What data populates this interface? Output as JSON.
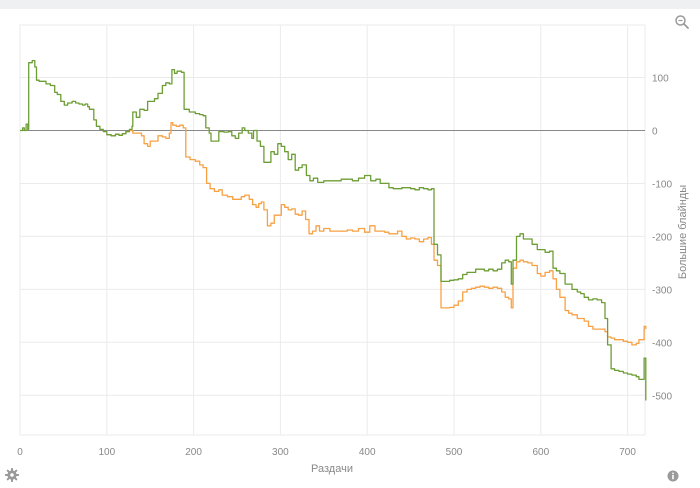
{
  "chart_data": {
    "type": "line",
    "title": "",
    "xlabel": "Раздачи",
    "ylabel": "Большие блайнды",
    "xlim": [
      0,
      722
    ],
    "ylim": [
      -530,
      135
    ],
    "xticks": [
      0,
      100,
      200,
      300,
      400,
      500,
      600,
      700
    ],
    "yticks": [
      100,
      0,
      -100,
      -200,
      -300,
      -400,
      -500
    ],
    "grid": true,
    "colors": {
      "green": "#6d9e35",
      "orange": "#f7a144",
      "zero_line": "#888888",
      "grid": "#ebebeb"
    },
    "series": [
      {
        "color": "#6d9e35",
        "points": [
          [
            0,
            0
          ],
          [
            3,
            5
          ],
          [
            5,
            0
          ],
          [
            7,
            12
          ],
          [
            9,
            2
          ],
          [
            10,
            128
          ],
          [
            14,
            132
          ],
          [
            17,
            120
          ],
          [
            19,
            95
          ],
          [
            22,
            93
          ],
          [
            27,
            93
          ],
          [
            30,
            88
          ],
          [
            35,
            85
          ],
          [
            40,
            72
          ],
          [
            43,
            68
          ],
          [
            47,
            55
          ],
          [
            51,
            48
          ],
          [
            55,
            52
          ],
          [
            60,
            55
          ],
          [
            64,
            52
          ],
          [
            68,
            50
          ],
          [
            72,
            48
          ],
          [
            75,
            50
          ],
          [
            78,
            45
          ],
          [
            80,
            40
          ],
          [
            85,
            20
          ],
          [
            88,
            8
          ],
          [
            92,
            2
          ],
          [
            96,
            -2
          ],
          [
            100,
            -8
          ],
          [
            105,
            -10
          ],
          [
            110,
            -7
          ],
          [
            114,
            -9
          ],
          [
            118,
            -6
          ],
          [
            122,
            -2
          ],
          [
            126,
            2
          ],
          [
            129,
            8
          ],
          [
            130,
            35
          ],
          [
            134,
            25
          ],
          [
            138,
            40
          ],
          [
            143,
            38
          ],
          [
            147,
            55
          ],
          [
            152,
            55
          ],
          [
            155,
            60
          ],
          [
            159,
            70
          ],
          [
            164,
            85
          ],
          [
            168,
            90
          ],
          [
            172,
            88
          ],
          [
            175,
            115
          ],
          [
            178,
            108
          ],
          [
            181,
            112
          ],
          [
            186,
            110
          ],
          [
            189,
            40
          ],
          [
            195,
            35
          ],
          [
            202,
            32
          ],
          [
            207,
            30
          ],
          [
            211,
            28
          ],
          [
            214,
            5
          ],
          [
            218,
            -5
          ],
          [
            220,
            -20
          ],
          [
            225,
            -20
          ],
          [
            229,
            -2
          ],
          [
            235,
            -3
          ],
          [
            240,
            -2
          ],
          [
            244,
            -10
          ],
          [
            248,
            -15
          ],
          [
            252,
            -5
          ],
          [
            256,
            5
          ],
          [
            259,
            0
          ],
          [
            263,
            -5
          ],
          [
            267,
            -15
          ],
          [
            269,
            0
          ],
          [
            273,
            -20
          ],
          [
            277,
            -30
          ],
          [
            281,
            -60
          ],
          [
            285,
            -60
          ],
          [
            289,
            -40
          ],
          [
            293,
            -45
          ],
          [
            297,
            -25
          ],
          [
            301,
            -30
          ],
          [
            305,
            -40
          ],
          [
            309,
            -55
          ],
          [
            313,
            -45
          ],
          [
            317,
            -75
          ],
          [
            321,
            -70
          ],
          [
            325,
            -65
          ],
          [
            330,
            -85
          ],
          [
            334,
            -95
          ],
          [
            338,
            -90
          ],
          [
            343,
            -98
          ],
          [
            350,
            -95
          ],
          [
            357,
            -95
          ],
          [
            363,
            -95
          ],
          [
            370,
            -92
          ],
          [
            377,
            -92
          ],
          [
            383,
            -95
          ],
          [
            390,
            -90
          ],
          [
            397,
            -85
          ],
          [
            404,
            -95
          ],
          [
            410,
            -92
          ],
          [
            415,
            -100
          ],
          [
            420,
            -100
          ],
          [
            425,
            -108
          ],
          [
            430,
            -110
          ],
          [
            435,
            -110
          ],
          [
            440,
            -108
          ],
          [
            445,
            -108
          ],
          [
            450,
            -110
          ],
          [
            455,
            -112
          ],
          [
            460,
            -108
          ],
          [
            465,
            -110
          ],
          [
            470,
            -112
          ],
          [
            474,
            -110
          ],
          [
            477,
            -215
          ],
          [
            481,
            -235
          ],
          [
            485,
            -285
          ],
          [
            490,
            -285
          ],
          [
            495,
            -283
          ],
          [
            500,
            -282
          ],
          [
            505,
            -280
          ],
          [
            510,
            -272
          ],
          [
            515,
            -268
          ],
          [
            520,
            -268
          ],
          [
            525,
            -262
          ],
          [
            530,
            -262
          ],
          [
            535,
            -265
          ],
          [
            540,
            -262
          ],
          [
            545,
            -265
          ],
          [
            550,
            -262
          ],
          [
            555,
            -250
          ],
          [
            559,
            -245
          ],
          [
            563,
            -248
          ],
          [
            566,
            -290
          ],
          [
            568,
            -245
          ],
          [
            572,
            -200
          ],
          [
            576,
            -195
          ],
          [
            580,
            -205
          ],
          [
            585,
            -205
          ],
          [
            590,
            -215
          ],
          [
            596,
            -225
          ],
          [
            600,
            -225
          ],
          [
            605,
            -230
          ],
          [
            610,
            -228
          ],
          [
            614,
            -260
          ],
          [
            618,
            -265
          ],
          [
            622,
            -270
          ],
          [
            628,
            -290
          ],
          [
            632,
            -290
          ],
          [
            636,
            -300
          ],
          [
            642,
            -305
          ],
          [
            646,
            -308
          ],
          [
            650,
            -315
          ],
          [
            655,
            -320
          ],
          [
            660,
            -318
          ],
          [
            665,
            -320
          ],
          [
            670,
            -325
          ],
          [
            674,
            -355
          ],
          [
            677,
            -405
          ],
          [
            681,
            -450
          ],
          [
            685,
            -453
          ],
          [
            690,
            -455
          ],
          [
            695,
            -458
          ],
          [
            700,
            -460
          ],
          [
            705,
            -462
          ],
          [
            710,
            -465
          ],
          [
            713,
            -470
          ],
          [
            716,
            -470
          ],
          [
            719,
            -430
          ],
          [
            721,
            -510
          ]
        ]
      },
      {
        "color": "#f7a144",
        "points": [
          [
            100,
            -8
          ],
          [
            105,
            -10
          ],
          [
            110,
            -7
          ],
          [
            114,
            -9
          ],
          [
            118,
            -6
          ],
          [
            122,
            -2
          ],
          [
            126,
            0
          ],
          [
            130,
            -5
          ],
          [
            135,
            -5
          ],
          [
            140,
            -10
          ],
          [
            143,
            -25
          ],
          [
            147,
            -30
          ],
          [
            150,
            -20
          ],
          [
            154,
            -20
          ],
          [
            159,
            -10
          ],
          [
            164,
            -12
          ],
          [
            168,
            -15
          ],
          [
            172,
            -5
          ],
          [
            174,
            15
          ],
          [
            176,
            10
          ],
          [
            180,
            8
          ],
          [
            184,
            10
          ],
          [
            188,
            5
          ],
          [
            191,
            -50
          ],
          [
            196,
            -55
          ],
          [
            202,
            -58
          ],
          [
            207,
            -65
          ],
          [
            211,
            -70
          ],
          [
            215,
            -100
          ],
          [
            219,
            -110
          ],
          [
            224,
            -115
          ],
          [
            229,
            -112
          ],
          [
            233,
            -122
          ],
          [
            239,
            -125
          ],
          [
            245,
            -130
          ],
          [
            251,
            -130
          ],
          [
            255,
            -125
          ],
          [
            259,
            -122
          ],
          [
            264,
            -130
          ],
          [
            268,
            -140
          ],
          [
            272,
            -145
          ],
          [
            275,
            -138
          ],
          [
            278,
            -135
          ],
          [
            281,
            -150
          ],
          [
            285,
            -180
          ],
          [
            289,
            -175
          ],
          [
            293,
            -160
          ],
          [
            297,
            -160
          ],
          [
            301,
            -140
          ],
          [
            305,
            -145
          ],
          [
            309,
            -150
          ],
          [
            313,
            -148
          ],
          [
            317,
            -158
          ],
          [
            321,
            -160
          ],
          [
            325,
            -152
          ],
          [
            329,
            -168
          ],
          [
            333,
            -195
          ],
          [
            337,
            -190
          ],
          [
            341,
            -180
          ],
          [
            345,
            -190
          ],
          [
            350,
            -185
          ],
          [
            357,
            -190
          ],
          [
            363,
            -190
          ],
          [
            370,
            -190
          ],
          [
            377,
            -188
          ],
          [
            383,
            -190
          ],
          [
            390,
            -185
          ],
          [
            397,
            -192
          ],
          [
            403,
            -180
          ],
          [
            409,
            -190
          ],
          [
            415,
            -190
          ],
          [
            420,
            -192
          ],
          [
            425,
            -195
          ],
          [
            430,
            -195
          ],
          [
            435,
            -190
          ],
          [
            440,
            -200
          ],
          [
            445,
            -205
          ],
          [
            450,
            -203
          ],
          [
            455,
            -205
          ],
          [
            460,
            -210
          ],
          [
            465,
            -205
          ],
          [
            470,
            -202
          ],
          [
            474,
            -215
          ],
          [
            477,
            -245
          ],
          [
            481,
            -255
          ],
          [
            485,
            -335
          ],
          [
            490,
            -335
          ],
          [
            495,
            -334
          ],
          [
            500,
            -330
          ],
          [
            505,
            -322
          ],
          [
            510,
            -305
          ],
          [
            515,
            -300
          ],
          [
            520,
            -298
          ],
          [
            525,
            -296
          ],
          [
            530,
            -294
          ],
          [
            535,
            -296
          ],
          [
            540,
            -298
          ],
          [
            545,
            -296
          ],
          [
            550,
            -298
          ],
          [
            555,
            -305
          ],
          [
            559,
            -315
          ],
          [
            563,
            -318
          ],
          [
            566,
            -335
          ],
          [
            568,
            -260
          ],
          [
            572,
            -248
          ],
          [
            576,
            -245
          ],
          [
            580,
            -248
          ],
          [
            585,
            -250
          ],
          [
            590,
            -255
          ],
          [
            596,
            -270
          ],
          [
            600,
            -275
          ],
          [
            605,
            -268
          ],
          [
            610,
            -265
          ],
          [
            614,
            -280
          ],
          [
            618,
            -300
          ],
          [
            622,
            -315
          ],
          [
            628,
            -340
          ],
          [
            632,
            -345
          ],
          [
            636,
            -348
          ],
          [
            642,
            -355
          ],
          [
            646,
            -355
          ],
          [
            650,
            -360
          ],
          [
            655,
            -370
          ],
          [
            660,
            -375
          ],
          [
            665,
            -375
          ],
          [
            670,
            -375
          ],
          [
            674,
            -380
          ],
          [
            677,
            -390
          ],
          [
            681,
            -392
          ],
          [
            685,
            -395
          ],
          [
            690,
            -395
          ],
          [
            695,
            -398
          ],
          [
            700,
            -400
          ],
          [
            705,
            -405
          ],
          [
            710,
            -402
          ],
          [
            713,
            -395
          ],
          [
            716,
            -395
          ],
          [
            719,
            -370
          ],
          [
            721,
            -375
          ]
        ]
      }
    ]
  },
  "icons": {
    "zoom": "magnifier-icon",
    "settings": "gear-icon",
    "info": "info-icon"
  }
}
